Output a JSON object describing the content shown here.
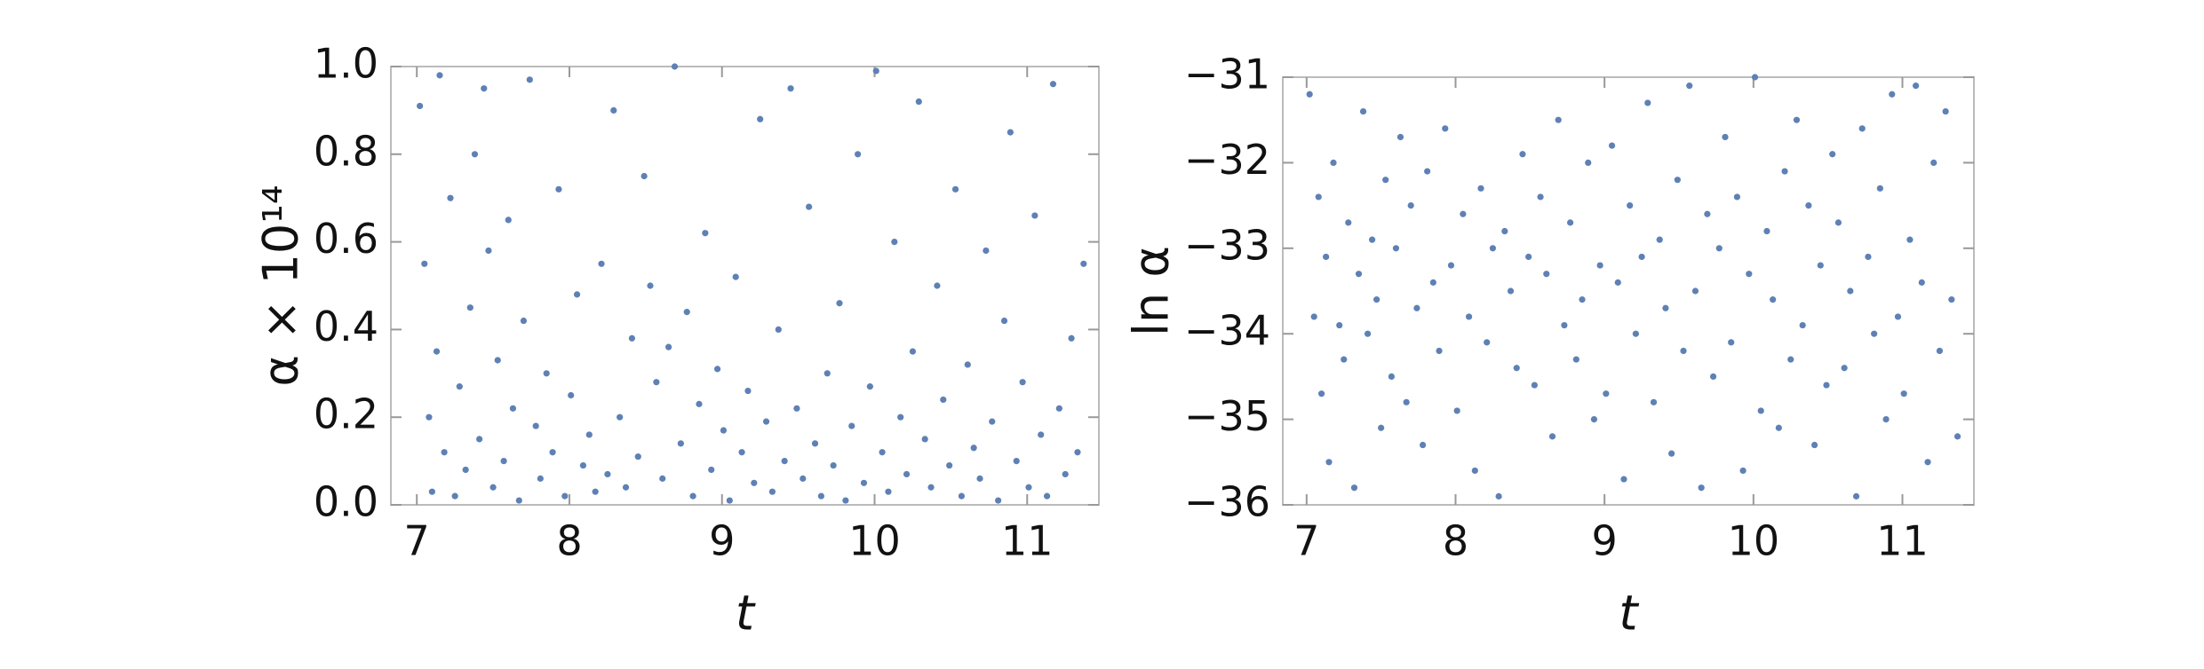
{
  "chart_data": [
    {
      "type": "scatter",
      "xlabel": "t",
      "ylabel": "α × 10¹⁴",
      "color": "#5e81b5",
      "xlim": [
        6.83,
        11.47
      ],
      "ylim": [
        0,
        1
      ],
      "xticks": [
        7,
        8,
        9,
        10,
        11
      ],
      "yticks": [
        {
          "value": 0,
          "label": "0.0"
        },
        0.2,
        0.4,
        0.6,
        0.8,
        {
          "value": 1,
          "label": "1.0"
        }
      ],
      "x": [
        7.02,
        7.05,
        7.08,
        7.1,
        7.13,
        7.15,
        7.18,
        7.22,
        7.25,
        7.28,
        7.32,
        7.35,
        7.38,
        7.41,
        7.44,
        7.47,
        7.5,
        7.53,
        7.57,
        7.6,
        7.63,
        7.67,
        7.7,
        7.74,
        7.78,
        7.81,
        7.85,
        7.89,
        7.93,
        7.97,
        8.01,
        8.05,
        8.09,
        8.13,
        8.17,
        8.21,
        8.25,
        8.29,
        8.33,
        8.37,
        8.41,
        8.45,
        8.49,
        8.53,
        8.57,
        8.61,
        8.65,
        8.69,
        8.73,
        8.77,
        8.81,
        8.85,
        8.89,
        8.93,
        8.97,
        9.01,
        9.05,
        9.09,
        9.13,
        9.17,
        9.21,
        9.25,
        9.29,
        9.33,
        9.37,
        9.41,
        9.45,
        9.49,
        9.53,
        9.57,
        9.61,
        9.65,
        9.69,
        9.73,
        9.77,
        9.81,
        9.85,
        9.89,
        9.93,
        9.97,
        10.01,
        10.05,
        10.09,
        10.13,
        10.17,
        10.21,
        10.25,
        10.29,
        10.33,
        10.37,
        10.41,
        10.45,
        10.49,
        10.53,
        10.57,
        10.61,
        10.65,
        10.69,
        10.73,
        10.77,
        10.81,
        10.85,
        10.89,
        10.93,
        10.97,
        11.01,
        11.05,
        11.09,
        11.13,
        11.17,
        11.21,
        11.25,
        11.29,
        11.33,
        11.37
      ],
      "y": [
        0.91,
        0.55,
        0.2,
        0.03,
        0.35,
        0.98,
        0.12,
        0.7,
        0.02,
        0.27,
        0.08,
        0.45,
        0.8,
        0.15,
        0.95,
        0.58,
        0.04,
        0.33,
        0.1,
        0.65,
        0.22,
        0.01,
        0.42,
        0.97,
        0.18,
        0.06,
        0.3,
        0.12,
        0.72,
        0.02,
        0.25,
        0.48,
        0.09,
        0.16,
        0.03,
        0.55,
        0.07,
        0.9,
        0.2,
        0.04,
        0.38,
        0.11,
        0.75,
        0.5,
        0.28,
        0.06,
        0.36,
        1.0,
        0.14,
        0.44,
        0.02,
        0.23,
        0.62,
        0.08,
        0.31,
        0.17,
        0.01,
        0.52,
        0.12,
        0.26,
        0.05,
        0.88,
        0.19,
        0.03,
        0.4,
        0.1,
        0.95,
        0.22,
        0.06,
        0.68,
        0.14,
        0.02,
        0.3,
        0.09,
        0.46,
        0.01,
        0.18,
        0.8,
        0.05,
        0.27,
        0.99,
        0.12,
        0.03,
        0.6,
        0.2,
        0.07,
        0.35,
        0.92,
        0.15,
        0.04,
        0.5,
        0.24,
        0.09,
        0.72,
        0.02,
        0.32,
        0.13,
        0.06,
        0.58,
        0.19,
        0.01,
        0.42,
        0.85,
        0.1,
        0.28,
        0.04,
        0.66,
        0.16,
        0.02,
        0.96,
        0.22,
        0.07,
        0.38,
        0.12,
        0.55
      ]
    },
    {
      "type": "scatter",
      "xlabel": "t",
      "ylabel": "ln α",
      "color": "#5e81b5",
      "xlim": [
        6.84,
        11.48
      ],
      "ylim": [
        -36,
        -31
      ],
      "xticks": [
        7,
        8,
        9,
        10,
        11
      ],
      "yticks": [
        {
          "value": -36,
          "label": "−36"
        },
        {
          "value": -35,
          "label": "−35"
        },
        {
          "value": -34,
          "label": "−34"
        },
        {
          "value": -33,
          "label": "−33"
        },
        {
          "value": -32,
          "label": "−32"
        },
        {
          "value": -31,
          "label": "−31"
        }
      ],
      "x": [
        7.02,
        7.05,
        7.08,
        7.1,
        7.13,
        7.15,
        7.18,
        7.22,
        7.25,
        7.28,
        7.32,
        7.35,
        7.38,
        7.41,
        7.44,
        7.47,
        7.5,
        7.53,
        7.57,
        7.6,
        7.63,
        7.67,
        7.7,
        7.74,
        7.78,
        7.81,
        7.85,
        7.89,
        7.93,
        7.97,
        8.01,
        8.05,
        8.09,
        8.13,
        8.17,
        8.21,
        8.25,
        8.29,
        8.33,
        8.37,
        8.41,
        8.45,
        8.49,
        8.53,
        8.57,
        8.61,
        8.65,
        8.69,
        8.73,
        8.77,
        8.81,
        8.85,
        8.89,
        8.93,
        8.97,
        9.01,
        9.05,
        9.09,
        9.13,
        9.17,
        9.21,
        9.25,
        9.29,
        9.33,
        9.37,
        9.41,
        9.45,
        9.49,
        9.53,
        9.57,
        9.61,
        9.65,
        9.69,
        9.73,
        9.77,
        9.81,
        9.85,
        9.89,
        9.93,
        9.97,
        10.01,
        10.05,
        10.09,
        10.13,
        10.17,
        10.21,
        10.25,
        10.29,
        10.33,
        10.37,
        10.41,
        10.45,
        10.49,
        10.53,
        10.57,
        10.61,
        10.65,
        10.69,
        10.73,
        10.77,
        10.81,
        10.85,
        10.89,
        10.93,
        10.97,
        11.01,
        11.05,
        11.09,
        11.13,
        11.17,
        11.21,
        11.25,
        11.29,
        11.33,
        11.37
      ],
      "y": [
        -31.2,
        -33.8,
        -32.4,
        -34.7,
        -33.1,
        -35.5,
        -32.0,
        -33.9,
        -34.3,
        -32.7,
        -35.8,
        -33.3,
        -31.4,
        -34.0,
        -32.9,
        -33.6,
        -35.1,
        -32.2,
        -34.5,
        -33.0,
        -31.7,
        -34.8,
        -32.5,
        -33.7,
        -35.3,
        -32.1,
        -33.4,
        -34.2,
        -31.6,
        -33.2,
        -34.9,
        -32.6,
        -33.8,
        -35.6,
        -32.3,
        -34.1,
        -33.0,
        -35.9,
        -32.8,
        -33.5,
        -34.4,
        -31.9,
        -33.1,
        -34.6,
        -32.4,
        -33.3,
        -35.2,
        -31.5,
        -33.9,
        -32.7,
        -34.3,
        -33.6,
        -32.0,
        -35.0,
        -33.2,
        -34.7,
        -31.8,
        -33.4,
        -35.7,
        -32.5,
        -34.0,
        -33.1,
        -31.3,
        -34.8,
        -32.9,
        -33.7,
        -35.4,
        -32.2,
        -34.2,
        -31.1,
        -33.5,
        -35.8,
        -32.6,
        -34.5,
        -33.0,
        -31.7,
        -34.1,
        -32.4,
        -35.6,
        -33.3,
        -31.0,
        -34.9,
        -32.8,
        -33.6,
        -35.1,
        -32.1,
        -34.3,
        -31.5,
        -33.9,
        -32.5,
        -35.3,
        -33.2,
        -34.6,
        -31.9,
        -32.7,
        -34.4,
        -33.5,
        -35.9,
        -31.6,
        -33.1,
        -34.0,
        -32.3,
        -35.0,
        -31.2,
        -33.8,
        -34.7,
        -32.9,
        -31.1,
        -33.4,
        -35.5,
        -32.0,
        -34.2,
        -31.4,
        -33.6,
        -35.2
      ]
    }
  ]
}
